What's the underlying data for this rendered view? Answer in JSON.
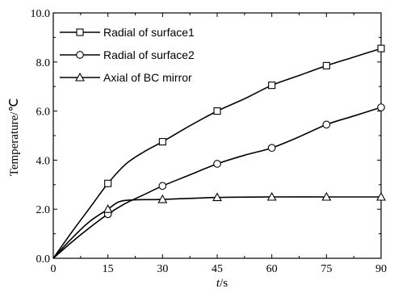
{
  "chart_data": {
    "type": "line",
    "xlabel_italic": "t",
    "xlabel_unit": "/s",
    "ylabel": "Temperature/℃",
    "xlim": [
      0,
      90
    ],
    "ylim": [
      0,
      10
    ],
    "xticks": [
      0,
      15,
      30,
      45,
      60,
      75,
      90
    ],
    "yticks": [
      0,
      2,
      4,
      6,
      8,
      10
    ],
    "xtick_labels": [
      "0",
      "15",
      "30",
      "45",
      "60",
      "75",
      "90"
    ],
    "ytick_labels": [
      "0.0",
      "2.0",
      "4.0",
      "6.0",
      "8.0",
      "10.0"
    ],
    "grid": false,
    "legend_position": "top-left",
    "series": [
      {
        "name": "Radial of surface1",
        "marker": "square",
        "curve": [
          [
            0,
            0
          ],
          [
            5,
            1.05
          ],
          [
            10,
            2.05
          ],
          [
            15,
            3.05
          ],
          [
            20,
            3.85
          ],
          [
            25,
            4.35
          ],
          [
            30,
            4.75
          ],
          [
            37.5,
            5.4
          ],
          [
            45,
            6.0
          ],
          [
            52.5,
            6.5
          ],
          [
            60,
            7.05
          ],
          [
            67.5,
            7.45
          ],
          [
            75,
            7.85
          ],
          [
            82.5,
            8.2
          ],
          [
            90,
            8.55
          ]
        ],
        "points": [
          [
            15,
            3.05
          ],
          [
            30,
            4.75
          ],
          [
            45,
            6.0
          ],
          [
            60,
            7.05
          ],
          [
            75,
            7.85
          ],
          [
            90,
            8.55
          ]
        ]
      },
      {
        "name": "Radial of surface2",
        "marker": "circle",
        "curve": [
          [
            0,
            0
          ],
          [
            5,
            0.65
          ],
          [
            10,
            1.25
          ],
          [
            15,
            1.8
          ],
          [
            20,
            2.25
          ],
          [
            25,
            2.6
          ],
          [
            30,
            2.95
          ],
          [
            37.5,
            3.4
          ],
          [
            45,
            3.85
          ],
          [
            52.5,
            4.2
          ],
          [
            60,
            4.5
          ],
          [
            67.5,
            4.95
          ],
          [
            75,
            5.45
          ],
          [
            82.5,
            5.8
          ],
          [
            90,
            6.15
          ]
        ],
        "points": [
          [
            15,
            1.8
          ],
          [
            30,
            2.95
          ],
          [
            45,
            3.85
          ],
          [
            60,
            4.5
          ],
          [
            75,
            5.45
          ],
          [
            90,
            6.15
          ]
        ]
      },
      {
        "name": "Axial of BC mirror",
        "marker": "triangle",
        "curve": [
          [
            0,
            0
          ],
          [
            5,
            0.8
          ],
          [
            10,
            1.5
          ],
          [
            15,
            2.0
          ],
          [
            18,
            2.3
          ],
          [
            22,
            2.38
          ],
          [
            30,
            2.4
          ],
          [
            45,
            2.48
          ],
          [
            60,
            2.5
          ],
          [
            75,
            2.5
          ],
          [
            90,
            2.5
          ]
        ],
        "points": [
          [
            15,
            2.0
          ],
          [
            30,
            2.4
          ],
          [
            45,
            2.48
          ],
          [
            60,
            2.5
          ],
          [
            75,
            2.5
          ],
          [
            90,
            2.5
          ]
        ]
      }
    ]
  }
}
